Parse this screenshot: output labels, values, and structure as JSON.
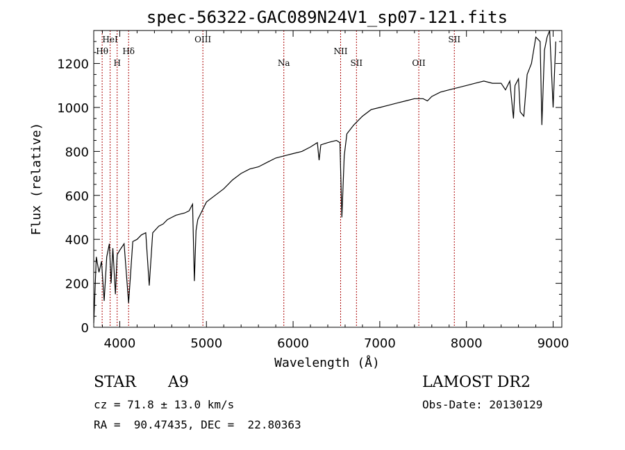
{
  "chart_data": {
    "type": "line",
    "title": "spec-56322-GAC089N24V1_sp07-121.fits",
    "xlabel": "Wavelength (Å)",
    "ylabel": "Flux (relative)",
    "xlim": [
      3700,
      9100
    ],
    "ylim": [
      0,
      1350
    ],
    "xticks": [
      4000,
      5000,
      6000,
      7000,
      8000,
      9000
    ],
    "yticks": [
      0,
      200,
      400,
      600,
      800,
      1000,
      1200
    ],
    "grid": false,
    "line_color": "#000000",
    "marker_color": "#aa0000",
    "spectral_lines": [
      {
        "label": "Hθ",
        "x": 3797,
        "row": "low"
      },
      {
        "label": "HeI",
        "x": 3889,
        "row": "high"
      },
      {
        "label": "H",
        "x": 3970,
        "row": "mid"
      },
      {
        "label": "Hδ",
        "x": 4102,
        "row": "low"
      },
      {
        "label": "OIII",
        "x": 4959,
        "row": "high"
      },
      {
        "label": "Na",
        "x": 5893,
        "row": "mid"
      },
      {
        "label": "NII",
        "x": 6548,
        "row": "low"
      },
      {
        "label": "SII",
        "x": 6731,
        "row": "mid"
      },
      {
        "label": "OII",
        "x": 7450,
        "row": "mid"
      },
      {
        "label": "SII",
        "x": 7860,
        "row": "high"
      }
    ],
    "series": [
      {
        "x": [
          3700,
          3730,
          3760,
          3790,
          3820,
          3850,
          3880,
          3900,
          3920,
          3950,
          3970,
          4000,
          4050,
          4102,
          4150,
          4200,
          4250,
          4300,
          4340,
          4380,
          4450,
          4500,
          4550,
          4600,
          4650,
          4700,
          4750,
          4800,
          4840,
          4861,
          4880,
          4900,
          4950,
          5000,
          5100,
          5200,
          5300,
          5400,
          5500,
          5600,
          5700,
          5800,
          5900,
          6000,
          6100,
          6200,
          6280,
          6300,
          6320,
          6400,
          6450,
          6500,
          6540,
          6563,
          6590,
          6620,
          6700,
          6800,
          6900,
          7000,
          7100,
          7200,
          7300,
          7400,
          7500,
          7550,
          7600,
          7700,
          7800,
          7900,
          8000,
          8100,
          8200,
          8300,
          8400,
          8450,
          8500,
          8542,
          8560,
          8600,
          8620,
          8662,
          8700,
          8750,
          8800,
          8850,
          8870,
          8900,
          8930,
          8960,
          9000,
          9030
        ],
        "values": [
          20,
          320,
          250,
          300,
          120,
          320,
          380,
          200,
          360,
          150,
          330,
          350,
          380,
          110,
          390,
          400,
          420,
          430,
          190,
          430,
          460,
          470,
          490,
          500,
          510,
          515,
          520,
          530,
          560,
          210,
          440,
          490,
          530,
          570,
          600,
          630,
          670,
          700,
          720,
          730,
          750,
          770,
          780,
          790,
          800,
          820,
          840,
          760,
          830,
          840,
          845,
          850,
          840,
          500,
          780,
          880,
          920,
          960,
          990,
          1000,
          1010,
          1020,
          1030,
          1040,
          1040,
          1030,
          1050,
          1070,
          1080,
          1090,
          1100,
          1110,
          1120,
          1110,
          1110,
          1080,
          1120,
          950,
          1100,
          1130,
          980,
          960,
          1150,
          1200,
          1320,
          1300,
          920,
          1260,
          1320,
          1350,
          1000,
          1300
        ]
      }
    ]
  },
  "info": {
    "class_label": "STAR",
    "subclass": "A9",
    "survey": "LAMOST DR2",
    "redshift_text": "cz = 71.8 ± 13.0 km/s",
    "obs_date_text": "Obs-Date: 20130129",
    "coords_text": "RA =  90.47435, DEC =  22.80363"
  }
}
